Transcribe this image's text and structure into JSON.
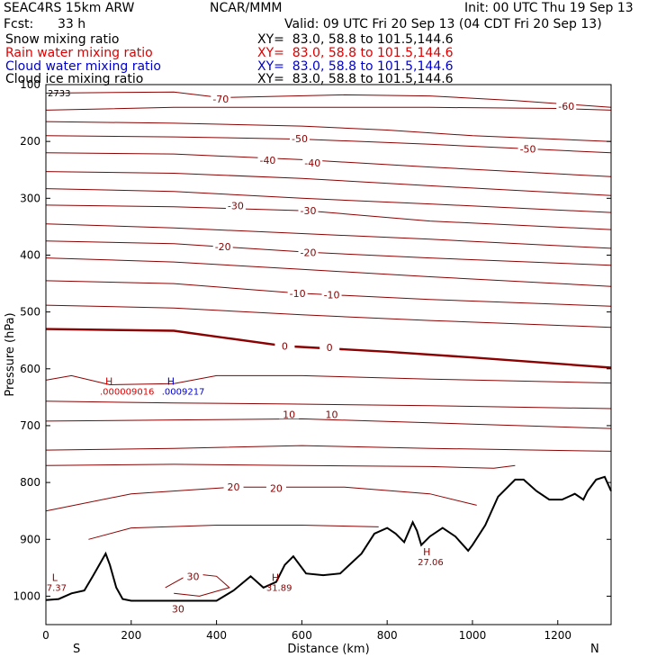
{
  "header": {
    "model": "SEAC4RS 15km ARW",
    "org": "NCAR/MMM",
    "init": "Init: 00 UTC Thu 19 Sep 13",
    "fcst_label": "Fcst:",
    "fcst_value": "33 h",
    "valid": "Valid: 09 UTC Fri 20 Sep 13 (04 CDT Fri 20 Sep 13)"
  },
  "legend": [
    {
      "label": "Snow mixing ratio",
      "xy": "XY=  83.0, 58.8 to 101.5,144.6",
      "color": "#000000"
    },
    {
      "label": "Rain water mixing ratio",
      "xy": "XY=  83.0, 58.8 to 101.5,144.6",
      "color": "#dd0000"
    },
    {
      "label": "Cloud water mixing ratio",
      "xy": "XY=  83.0, 58.8 to 101.5,144.6",
      "color": "#0000cc"
    },
    {
      "label": "Cloud ice mixing ratio",
      "xy": "XY=  83.0, 58.8 to 101.5,144.6",
      "color": "#000000"
    }
  ],
  "colors": {
    "contour": "#8b0000",
    "terrain": "#000000",
    "axis": "#000000",
    "rain": "#dd0000",
    "cloud": "#0000cc"
  },
  "chart_data": {
    "type": "line",
    "xlabel": "Distance (km)",
    "ylabel": "Pressure (hPa)",
    "xlim": [
      0,
      1325
    ],
    "ylim": [
      1050,
      100
    ],
    "x_ticks": [
      0,
      200,
      400,
      600,
      800,
      1000,
      1200
    ],
    "y_ticks": [
      100,
      200,
      300,
      400,
      500,
      600,
      700,
      800,
      900,
      1000
    ],
    "x_tick_labels": [
      "0",
      "200",
      "400",
      "600",
      "800",
      "1000",
      "1200"
    ],
    "y_tick_labels": [
      "",
      "200",
      "300",
      "400",
      "500",
      "600",
      "700",
      "800",
      "900",
      "1000"
    ],
    "y_top_label": "100",
    "left_end_label": "S",
    "right_end_label": "N",
    "corner_value": "2733",
    "contour_labels": [
      {
        "text": "-70",
        "x": 410,
        "p": 125
      },
      {
        "text": "-60",
        "x": 1220,
        "p": 138
      },
      {
        "text": "-50",
        "x": 595,
        "p": 195
      },
      {
        "text": "-50",
        "x": 1130,
        "p": 213
      },
      {
        "text": "-40",
        "x": 520,
        "p": 233
      },
      {
        "text": "-40",
        "x": 625,
        "p": 238
      },
      {
        "text": "-30",
        "x": 445,
        "p": 313
      },
      {
        "text": "-30",
        "x": 615,
        "p": 322
      },
      {
        "text": "-20",
        "x": 415,
        "p": 385
      },
      {
        "text": "-20",
        "x": 615,
        "p": 395
      },
      {
        "text": "-10",
        "x": 590,
        "p": 467
      },
      {
        "text": "-10",
        "x": 670,
        "p": 470
      },
      {
        "text": "0",
        "x": 560,
        "p": 560
      },
      {
        "text": "0",
        "x": 665,
        "p": 562
      },
      {
        "text": "10",
        "x": 570,
        "p": 680
      },
      {
        "text": "10",
        "x": 670,
        "p": 680
      },
      {
        "text": "20",
        "x": 440,
        "p": 808
      },
      {
        "text": "20",
        "x": 540,
        "p": 810
      },
      {
        "text": "30",
        "x": 345,
        "p": 965
      },
      {
        "text": "30",
        "x": 310,
        "p": 1022
      }
    ],
    "extrema": [
      {
        "mark": "H",
        "value": "27.06",
        "x": 880,
        "p": 930,
        "color": "#8b0000"
      },
      {
        "mark": "H",
        "value": "31.89",
        "x": 525,
        "p": 975,
        "color": "#8b0000"
      },
      {
        "mark": "L",
        "value": "7.37",
        "x": 10,
        "p": 975,
        "color": "#8b0000"
      },
      {
        "mark": "H",
        "value": ".000009016",
        "x": 135,
        "p": 630,
        "color": "#dd0000"
      },
      {
        "mark": "H",
        "value": ".0009217",
        "x": 280,
        "p": 630,
        "color": "#0000cc"
      }
    ],
    "isotherm_series": [
      {
        "name": "-70",
        "values": [
          [
            0,
            115
          ],
          [
            300,
            113
          ],
          [
            410,
            123
          ],
          [
            700,
            118
          ],
          [
            900,
            120
          ],
          [
            1100,
            128
          ],
          [
            1325,
            140
          ]
        ]
      },
      {
        "name": "-60",
        "values": [
          [
            0,
            145
          ],
          [
            300,
            140
          ],
          [
            600,
            140
          ],
          [
            900,
            140
          ],
          [
            1200,
            142
          ],
          [
            1325,
            145
          ]
        ]
      },
      {
        "name": "-50 a",
        "values": [
          [
            0,
            165
          ],
          [
            300,
            168
          ],
          [
            600,
            173
          ],
          [
            800,
            180
          ],
          [
            1000,
            190
          ],
          [
            1325,
            200
          ]
        ]
      },
      {
        "name": "-50 b",
        "values": [
          [
            0,
            190
          ],
          [
            300,
            192
          ],
          [
            600,
            196
          ],
          [
            900,
            205
          ],
          [
            1130,
            213
          ],
          [
            1325,
            220
          ]
        ]
      },
      {
        "name": "-40 a",
        "values": [
          [
            0,
            220
          ],
          [
            300,
            222
          ],
          [
            600,
            232
          ],
          [
            900,
            245
          ],
          [
            1325,
            262
          ]
        ]
      },
      {
        "name": "-40 b",
        "values": [
          [
            0,
            253
          ],
          [
            300,
            256
          ],
          [
            600,
            265
          ],
          [
            900,
            278
          ],
          [
            1325,
            295
          ]
        ]
      },
      {
        "name": "-30 a",
        "values": [
          [
            0,
            283
          ],
          [
            300,
            288
          ],
          [
            600,
            300
          ],
          [
            900,
            310
          ],
          [
            1325,
            325
          ]
        ]
      },
      {
        "name": "-30 b",
        "values": [
          [
            0,
            312
          ],
          [
            300,
            315
          ],
          [
            615,
            322
          ],
          [
            900,
            340
          ],
          [
            1325,
            355
          ]
        ]
      },
      {
        "name": "-20 a",
        "values": [
          [
            0,
            345
          ],
          [
            300,
            352
          ],
          [
            600,
            362
          ],
          [
            900,
            372
          ],
          [
            1325,
            388
          ]
        ]
      },
      {
        "name": "-20 b",
        "values": [
          [
            0,
            375
          ],
          [
            300,
            380
          ],
          [
            615,
            395
          ],
          [
            900,
            405
          ],
          [
            1325,
            418
          ]
        ]
      },
      {
        "name": "-10 a",
        "values": [
          [
            0,
            405
          ],
          [
            300,
            412
          ],
          [
            600,
            425
          ],
          [
            900,
            438
          ],
          [
            1325,
            455
          ]
        ]
      },
      {
        "name": "-10 b",
        "values": [
          [
            0,
            445
          ],
          [
            300,
            450
          ],
          [
            590,
            467
          ],
          [
            900,
            478
          ],
          [
            1325,
            490
          ]
        ]
      },
      {
        "name": "-5",
        "values": [
          [
            0,
            488
          ],
          [
            300,
            493
          ],
          [
            600,
            505
          ],
          [
            900,
            515
          ],
          [
            1325,
            527
          ]
        ]
      },
      {
        "name": "0",
        "values": [
          [
            0,
            530
          ],
          [
            300,
            533
          ],
          [
            560,
            560
          ],
          [
            800,
            570
          ],
          [
            1000,
            580
          ],
          [
            1325,
            598
          ]
        ]
      },
      {
        "name": "5",
        "values": [
          [
            0,
            620
          ],
          [
            60,
            612
          ],
          [
            150,
            628
          ],
          [
            300,
            626
          ],
          [
            400,
            612
          ],
          [
            600,
            612
          ],
          [
            900,
            618
          ],
          [
            1325,
            625
          ]
        ]
      },
      {
        "name": "10 a",
        "values": [
          [
            0,
            657
          ],
          [
            300,
            660
          ],
          [
            570,
            662
          ],
          [
            900,
            665
          ],
          [
            1325,
            670
          ]
        ]
      },
      {
        "name": "10 b",
        "values": [
          [
            0,
            692
          ],
          [
            300,
            690
          ],
          [
            600,
            688
          ],
          [
            900,
            695
          ],
          [
            1325,
            705
          ]
        ]
      },
      {
        "name": "15",
        "values": [
          [
            0,
            743
          ],
          [
            300,
            740
          ],
          [
            600,
            735
          ],
          [
            900,
            740
          ],
          [
            1325,
            745
          ]
        ]
      },
      {
        "name": "20 a",
        "values": [
          [
            0,
            770
          ],
          [
            300,
            768
          ],
          [
            600,
            770
          ],
          [
            900,
            772
          ],
          [
            1050,
            775
          ],
          [
            1100,
            770
          ]
        ]
      },
      {
        "name": "20 b",
        "values": [
          [
            0,
            850
          ],
          [
            200,
            820
          ],
          [
            440,
            808
          ],
          [
            700,
            808
          ],
          [
            900,
            820
          ],
          [
            1010,
            840
          ]
        ]
      },
      {
        "name": "25",
        "values": [
          [
            100,
            900
          ],
          [
            200,
            880
          ],
          [
            400,
            875
          ],
          [
            600,
            875
          ],
          [
            780,
            878
          ]
        ]
      },
      {
        "name": "30",
        "values": [
          [
            280,
            985
          ],
          [
            340,
            960
          ],
          [
            400,
            965
          ],
          [
            430,
            985
          ],
          [
            360,
            1000
          ],
          [
            300,
            995
          ]
        ]
      }
    ],
    "terrain": {
      "name": "terrain",
      "x": [
        0,
        30,
        60,
        90,
        110,
        140,
        150,
        165,
        180,
        200,
        300,
        400,
        440,
        480,
        510,
        540,
        560,
        580,
        610,
        650,
        690,
        740,
        770,
        800,
        820,
        840,
        860,
        870,
        880,
        900,
        930,
        960,
        990,
        1000,
        1030,
        1060,
        1100,
        1120,
        1150,
        1180,
        1210,
        1240,
        1260,
        1270,
        1290,
        1310,
        1325
      ],
      "p": [
        1007,
        1005,
        995,
        990,
        965,
        925,
        945,
        985,
        1005,
        1008,
        1008,
        1008,
        990,
        965,
        985,
        975,
        945,
        930,
        960,
        963,
        960,
        925,
        890,
        880,
        890,
        905,
        870,
        885,
        910,
        895,
        880,
        895,
        920,
        910,
        875,
        825,
        795,
        795,
        815,
        830,
        830,
        820,
        830,
        815,
        795,
        790,
        815
      ]
    }
  }
}
